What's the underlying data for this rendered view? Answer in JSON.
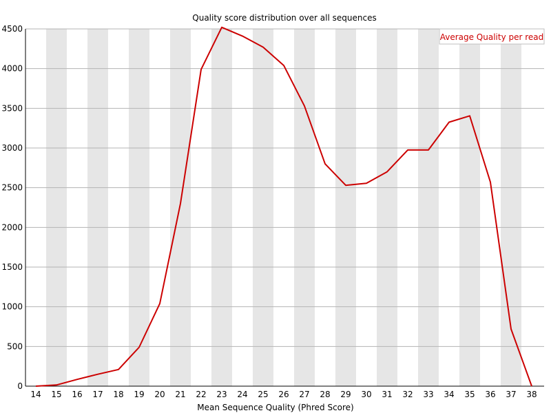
{
  "chart_data": {
    "type": "line",
    "title": "Quality score distribution over all sequences",
    "xlabel": "Mean Sequence Quality (Phred Score)",
    "ylabel": "",
    "x": [
      14,
      15,
      16,
      17,
      18,
      19,
      20,
      21,
      22,
      23,
      24,
      25,
      26,
      27,
      28,
      29,
      30,
      31,
      32,
      33,
      34,
      35,
      36,
      37,
      38
    ],
    "xlim": [
      14,
      38
    ],
    "ylim": [
      0,
      4500
    ],
    "yticks": [
      0,
      500,
      1000,
      1500,
      2000,
      2500,
      3000,
      3500,
      4000,
      4500
    ],
    "series": [
      {
        "name": "Average Quality per read",
        "color": "#cc0000",
        "values": [
          0,
          15,
          85,
          150,
          210,
          490,
          1040,
          2300,
          3990,
          4520,
          4410,
          4270,
          4040,
          3530,
          2800,
          2530,
          2555,
          2700,
          2975,
          2975,
          3325,
          3405,
          2570,
          720,
          0
        ]
      }
    ],
    "grid": true,
    "legend": "top-right",
    "band_color": "#e6e6e6",
    "axis_color": "#000000"
  }
}
